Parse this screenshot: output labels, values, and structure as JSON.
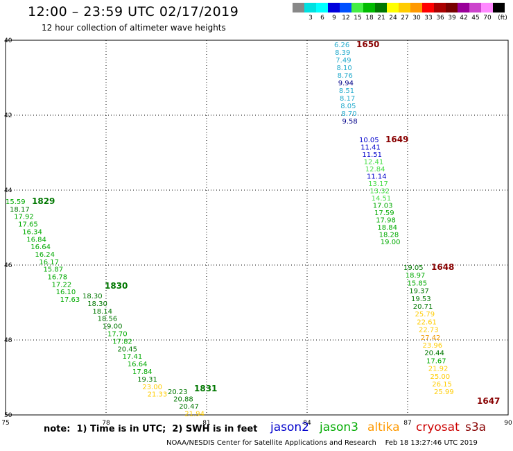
{
  "header": {
    "title": "12:00 – 23:59 UTC 02/17/2019",
    "subtitle": "12 hour collection of altimeter wave heights"
  },
  "legend": {
    "swatches": [
      {
        "label": "",
        "color": "#888888"
      },
      {
        "label": "3",
        "color": "#00e0e0"
      },
      {
        "label": "6",
        "color": "#00ffff"
      },
      {
        "label": "9",
        "color": "#0000dd"
      },
      {
        "label": "12",
        "color": "#0050ff"
      },
      {
        "label": "15",
        "color": "#44ee44"
      },
      {
        "label": "18",
        "color": "#00bb00"
      },
      {
        "label": "21",
        "color": "#007700"
      },
      {
        "label": "24",
        "color": "#ffff00"
      },
      {
        "label": "27",
        "color": "#ffcc00"
      },
      {
        "label": "30",
        "color": "#ff9900"
      },
      {
        "label": "33",
        "color": "#ff0000"
      },
      {
        "label": "36",
        "color": "#aa0000"
      },
      {
        "label": "39",
        "color": "#770000"
      },
      {
        "label": "42",
        "color": "#990099"
      },
      {
        "label": "45",
        "color": "#cc44cc"
      },
      {
        "label": "70",
        "color": "#ff88ff"
      },
      {
        "label": "",
        "color": "#000000"
      }
    ],
    "unit": "(ft)"
  },
  "axes": {
    "x_ticks": [
      "75",
      "78",
      "81",
      "84",
      "87",
      "90"
    ],
    "y_ticks": [
      "40",
      "42",
      "44",
      "46",
      "48",
      "50"
    ]
  },
  "tracks": [
    {
      "time_label": "1650",
      "time_color": "#880000",
      "points": [
        {
          "v": "6.26",
          "c": "#22aacc"
        },
        {
          "v": "8.39",
          "c": "#22aacc"
        },
        {
          "v": "7.49",
          "c": "#22aacc"
        },
        {
          "v": "8.10",
          "c": "#22aacc"
        },
        {
          "v": "8.76",
          "c": "#22aacc"
        },
        {
          "v": "9.94",
          "c": "#000088"
        },
        {
          "v": "8.51",
          "c": "#22aacc"
        },
        {
          "v": "8.17",
          "c": "#22aacc"
        },
        {
          "v": "8.05",
          "c": "#22aacc"
        },
        {
          "v": "8.70",
          "c": "#22aacc"
        },
        {
          "v": "9.58",
          "c": "#000088"
        }
      ]
    },
    {
      "time_label": "1649",
      "time_color": "#880000",
      "points": [
        {
          "v": "10.05",
          "c": "#0000cc"
        },
        {
          "v": "11.41",
          "c": "#0000cc"
        },
        {
          "v": "11.51",
          "c": "#0000cc"
        },
        {
          "v": "12.41",
          "c": "#44dd44"
        },
        {
          "v": "12.84",
          "c": "#44dd44"
        },
        {
          "v": "11.14",
          "c": "#0000cc"
        },
        {
          "v": "13.17",
          "c": "#44dd44"
        },
        {
          "v": "13.32",
          "c": "#44dd44"
        },
        {
          "v": "14.51",
          "c": "#44dd44"
        },
        {
          "v": "17.03",
          "c": "#00aa00"
        },
        {
          "v": "17.59",
          "c": "#00aa00"
        },
        {
          "v": "17.98",
          "c": "#00aa00"
        },
        {
          "v": "18.84",
          "c": "#00aa00"
        },
        {
          "v": "18.28",
          "c": "#00aa00"
        },
        {
          "v": "19.00",
          "c": "#00aa00"
        }
      ]
    },
    {
      "time_label": "1648",
      "time_color": "#880000",
      "points": [
        {
          "v": "19.05",
          "c": "#007700"
        },
        {
          "v": "18.97",
          "c": "#00aa00"
        },
        {
          "v": "15.85",
          "c": "#00aa00"
        },
        {
          "v": "19.37",
          "c": "#007700"
        },
        {
          "v": "19.53",
          "c": "#007700"
        },
        {
          "v": "20.71",
          "c": "#007700"
        },
        {
          "v": "25.79",
          "c": "#ffcc00"
        },
        {
          "v": "22.61",
          "c": "#ffcc00"
        },
        {
          "v": "22.73",
          "c": "#ffcc00"
        },
        {
          "v": "27.42",
          "c": "#ee9900"
        },
        {
          "v": "23.96",
          "c": "#ffcc00"
        },
        {
          "v": "20.44",
          "c": "#007700"
        },
        {
          "v": "17.67",
          "c": "#00aa00"
        },
        {
          "v": "21.92",
          "c": "#ffcc00"
        },
        {
          "v": "25.00",
          "c": "#ffcc00"
        },
        {
          "v": "26.15",
          "c": "#ffcc00"
        },
        {
          "v": "25.99",
          "c": "#ffcc00"
        }
      ],
      "time_label2": "1647",
      "time_color2": "#880000"
    },
    {
      "time_label": "1829",
      "time_color": "#007700",
      "points": [
        {
          "v": "15.59",
          "c": "#00aa00"
        },
        {
          "v": "18.17",
          "c": "#007700"
        },
        {
          "v": "17.92",
          "c": "#00aa00"
        },
        {
          "v": "17.65",
          "c": "#00aa00"
        },
        {
          "v": "16.34",
          "c": "#00aa00"
        },
        {
          "v": "16.84",
          "c": "#00aa00"
        },
        {
          "v": "16.64",
          "c": "#00aa00"
        },
        {
          "v": "16.24",
          "c": "#00aa00"
        },
        {
          "v": "16.17",
          "c": "#00aa00"
        },
        {
          "v": "15.87",
          "c": "#00aa00"
        },
        {
          "v": "16.78",
          "c": "#00aa00"
        },
        {
          "v": "17.22",
          "c": "#00aa00"
        },
        {
          "v": "16.10",
          "c": "#00aa00"
        },
        {
          "v": "17.63",
          "c": "#00aa00"
        }
      ]
    },
    {
      "time_label": "1830",
      "time_color": "#007700",
      "points": [
        {
          "v": "18.30",
          "c": "#007700"
        },
        {
          "v": "18.30",
          "c": "#007700"
        },
        {
          "v": "18.14",
          "c": "#007700"
        },
        {
          "v": "18.56",
          "c": "#007700"
        },
        {
          "v": "19.00",
          "c": "#007700"
        },
        {
          "v": "17.70",
          "c": "#00aa00"
        },
        {
          "v": "17.82",
          "c": "#00aa00"
        },
        {
          "v": "20.45",
          "c": "#007700"
        },
        {
          "v": "17.41",
          "c": "#00aa00"
        },
        {
          "v": "16.64",
          "c": "#00aa00"
        },
        {
          "v": "17.84",
          "c": "#00aa00"
        },
        {
          "v": "19.31",
          "c": "#007700"
        },
        {
          "v": "23.00",
          "c": "#ffcc00"
        },
        {
          "v": "21.33",
          "c": "#ffcc00"
        }
      ]
    },
    {
      "time_label": "1831",
      "time_color": "#007700",
      "points": [
        {
          "v": "20.23",
          "c": "#007700"
        },
        {
          "v": "20.88",
          "c": "#007700"
        },
        {
          "v": "20.47",
          "c": "#007700"
        },
        {
          "v": "21.94",
          "c": "#ffcc00"
        }
      ]
    }
  ],
  "footer": {
    "note": "note:  1) Time is in UTC;  2) SWH is in feet",
    "satellites": [
      {
        "name": "jason2",
        "color": "#0000cc"
      },
      {
        "name": "jason3",
        "color": "#00aa00"
      },
      {
        "name": "altika",
        "color": "#ff9900"
      },
      {
        "name": "cryosat",
        "color": "#cc0000"
      },
      {
        "name": "s3a",
        "color": "#880000"
      }
    ],
    "credit": "NOAA/NESDIS Center for Satellite Applications and Research    Feb 18 13:27:46 UTC 2019"
  }
}
